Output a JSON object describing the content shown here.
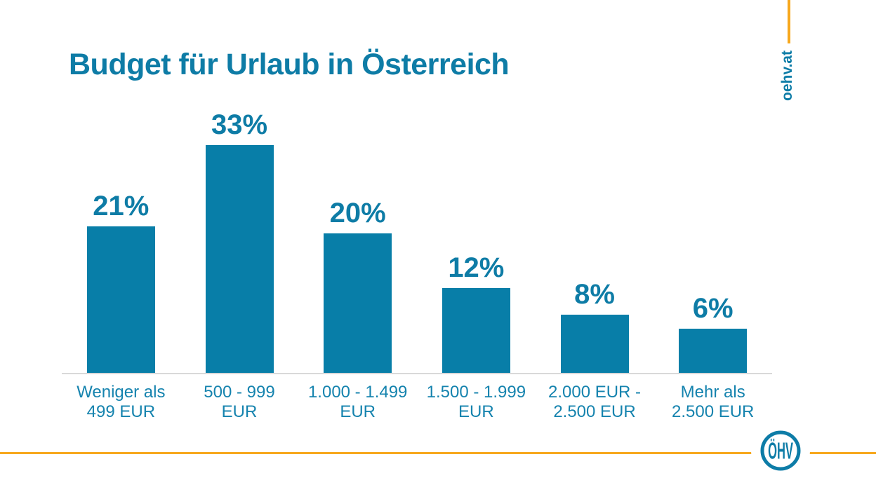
{
  "title": {
    "text": "Budget für Urlaub in Österreich"
  },
  "branding": {
    "site_label": "oehv.at",
    "logo_text": "ÖHV",
    "accent_color": "#f7a81d",
    "brand_teal": "#0d7ca7"
  },
  "chart_data": {
    "type": "bar",
    "title": "Budget für Urlaub in Österreich",
    "categories": [
      [
        "Weniger als",
        "499 EUR"
      ],
      [
        "500 - 999",
        "EUR"
      ],
      [
        "1.000 - 1.499",
        "EUR"
      ],
      [
        "1.500 - 1.999",
        "EUR"
      ],
      [
        "2.000 EUR -",
        "2.500 EUR"
      ],
      [
        "Mehr als",
        "2.500 EUR"
      ]
    ],
    "values": [
      21,
      33,
      20,
      12,
      8,
      6
    ],
    "value_labels": [
      "21%",
      "33%",
      "20%",
      "12%",
      "8%",
      "6%"
    ],
    "bar_color": "#087ea8",
    "value_label_color": "#0e7ca6",
    "category_label_color": "#1583ae",
    "axis_line_color": "#d9d9d9",
    "xlabel": "",
    "ylabel": "",
    "ylim": [
      0,
      35
    ],
    "grid": false,
    "legend": false
  }
}
